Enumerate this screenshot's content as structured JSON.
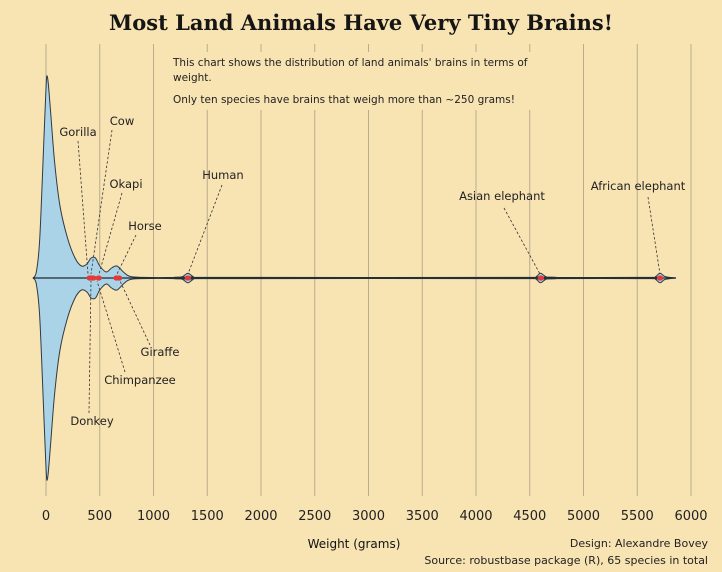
{
  "chart_data": {
    "type": "violin",
    "title": "Most Land Animals Have Very Tiny Brains!",
    "description": [
      "This chart shows the distribution of land animals' brains in terms of",
      "weight.",
      "Only ten species have brains that weigh more than ~250 grams!"
    ],
    "xlabel": "Weight (grams)",
    "xlim": [
      0,
      6000
    ],
    "xticks": [
      0,
      500,
      1000,
      1500,
      2000,
      2500,
      3000,
      3500,
      4000,
      4500,
      5000,
      5500,
      6000
    ],
    "x_tick_labels": [
      "0",
      "500",
      "1000",
      "1500",
      "2000",
      "2500",
      "3000",
      "3500",
      "4000",
      "4500",
      "5000",
      "5500",
      "6000"
    ],
    "density_profile": [
      {
        "x": -120,
        "w": 0
      },
      {
        "x": -90,
        "w": 0.03
      },
      {
        "x": -60,
        "w": 0.18
      },
      {
        "x": -30,
        "w": 0.55
      },
      {
        "x": 0,
        "w": 0.95
      },
      {
        "x": 15,
        "w": 1.0
      },
      {
        "x": 40,
        "w": 0.85
      },
      {
        "x": 80,
        "w": 0.58
      },
      {
        "x": 130,
        "w": 0.36
      },
      {
        "x": 200,
        "w": 0.2
      },
      {
        "x": 270,
        "w": 0.1
      },
      {
        "x": 330,
        "w": 0.06
      },
      {
        "x": 380,
        "w": 0.07
      },
      {
        "x": 420,
        "w": 0.1
      },
      {
        "x": 460,
        "w": 0.1
      },
      {
        "x": 500,
        "w": 0.06
      },
      {
        "x": 560,
        "w": 0.03
      },
      {
        "x": 610,
        "w": 0.05
      },
      {
        "x": 660,
        "w": 0.06
      },
      {
        "x": 720,
        "w": 0.03
      },
      {
        "x": 780,
        "w": 0.008
      },
      {
        "x": 900,
        "w": 0.003
      },
      {
        "x": 1200,
        "w": 0.003
      },
      {
        "x": 1270,
        "w": 0.007
      },
      {
        "x": 1320,
        "w": 0.024
      },
      {
        "x": 1370,
        "w": 0.007
      },
      {
        "x": 1440,
        "w": 0.003
      },
      {
        "x": 4500,
        "w": 0.003
      },
      {
        "x": 4560,
        "w": 0.007
      },
      {
        "x": 4600,
        "w": 0.024
      },
      {
        "x": 4650,
        "w": 0.007
      },
      {
        "x": 4720,
        "w": 0.003
      },
      {
        "x": 5620,
        "w": 0.003
      },
      {
        "x": 5670,
        "w": 0.007
      },
      {
        "x": 5712,
        "w": 0.024
      },
      {
        "x": 5760,
        "w": 0.007
      },
      {
        "x": 5860,
        "w": 0
      }
    ],
    "annotations": [
      {
        "label": "Gorilla",
        "x": 406
      },
      {
        "label": "Cow",
        "x": 423
      },
      {
        "label": "Okapi",
        "x": 490
      },
      {
        "label": "Horse",
        "x": 655
      },
      {
        "label": "Human",
        "x": 1320
      },
      {
        "label": "Asian elephant",
        "x": 4603
      },
      {
        "label": "African elephant",
        "x": 5712
      },
      {
        "label": "Giraffe",
        "x": 680
      },
      {
        "label": "Chimpanzee",
        "x": 440
      },
      {
        "label": "Donkey",
        "x": 419
      }
    ],
    "credit": "Design: Alexandre Bovey",
    "source": "Source: robustbase package (R), 65 species in total"
  },
  "colors": {
    "background": "#f8e3b3",
    "violin_fill": "#abd3e8",
    "violin_outline": "#2f3942",
    "points": "#e03b3b"
  }
}
